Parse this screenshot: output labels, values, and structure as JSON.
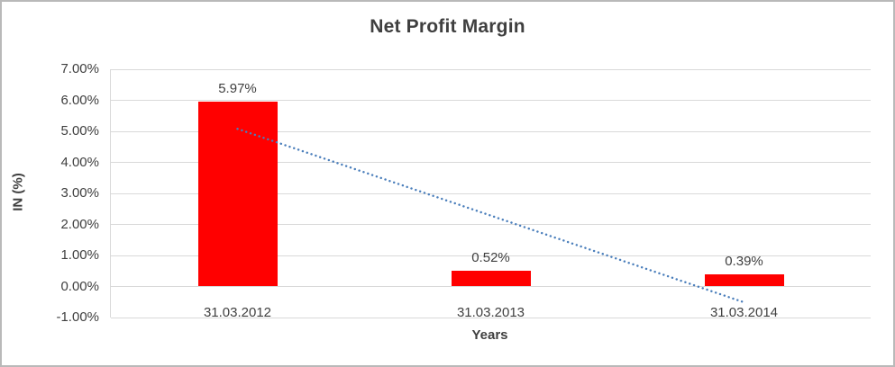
{
  "chart_data": {
    "type": "bar",
    "title": "Net Profit Margin",
    "xlabel": "Years",
    "ylabel": "IN (%)",
    "categories": [
      "31.03.2012",
      "31.03.2013",
      "31.03.2014"
    ],
    "values": [
      5.97,
      0.52,
      0.39
    ],
    "data_labels": [
      "5.97%",
      "0.52%",
      "0.39%"
    ],
    "ylim": [
      -1,
      7
    ],
    "ytick_step": 1,
    "ytick_labels": [
      "7.00%",
      "6.00%",
      "5.00%",
      "4.00%",
      "3.00%",
      "2.00%",
      "1.00%",
      "0.00%",
      "-1.00%"
    ],
    "grid": true,
    "legend": "none",
    "bar_color": "#ff0000",
    "trendline": {
      "style": "dotted",
      "color": "#4a7ebb",
      "start_category_index": 0,
      "start_value": 5.08,
      "end_category_index": 2,
      "end_value": -0.51
    }
  }
}
